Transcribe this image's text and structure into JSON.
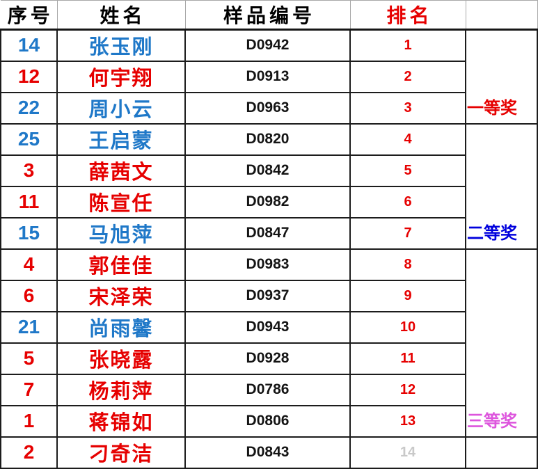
{
  "header": {
    "serial": "序号",
    "name": "姓名",
    "sample": "样品编号",
    "rank": "排名",
    "prize": "",
    "text_color": "#000000",
    "rank_color": "#e60000"
  },
  "colors": {
    "blue": "#1f78c8",
    "red": "#e60000",
    "black": "#141414",
    "faded_rank": "#c9c9c9",
    "prize_first": "#e60000",
    "prize_second": "#0000dd",
    "prize_third": "#dd55dd",
    "border": "#1c1c1c"
  },
  "rows": [
    {
      "no": "14",
      "name": "张玉刚",
      "sample": "D0942",
      "rank": "1",
      "color": "#1f78c8",
      "rank_color": "#e60000"
    },
    {
      "no": "12",
      "name": "何宇翔",
      "sample": "D0913",
      "rank": "2",
      "color": "#e60000",
      "rank_color": "#e60000"
    },
    {
      "no": "22",
      "name": "周小云",
      "sample": "D0963",
      "rank": "3",
      "color": "#1f78c8",
      "rank_color": "#e60000"
    },
    {
      "no": "25",
      "name": "王启蒙",
      "sample": "D0820",
      "rank": "4",
      "color": "#1f78c8",
      "rank_color": "#e60000"
    },
    {
      "no": "3",
      "name": "薛茜文",
      "sample": "D0842",
      "rank": "5",
      "color": "#e60000",
      "rank_color": "#e60000"
    },
    {
      "no": "11",
      "name": "陈宣任",
      "sample": "D0982",
      "rank": "6",
      "color": "#e60000",
      "rank_color": "#e60000"
    },
    {
      "no": "15",
      "name": "马旭萍",
      "sample": "D0847",
      "rank": "7",
      "color": "#1f78c8",
      "rank_color": "#e60000"
    },
    {
      "no": "4",
      "name": "郭佳佳",
      "sample": "D0983",
      "rank": "8",
      "color": "#e60000",
      "rank_color": "#e60000"
    },
    {
      "no": "6",
      "name": "宋泽荣",
      "sample": "D0937",
      "rank": "9",
      "color": "#e60000",
      "rank_color": "#e60000"
    },
    {
      "no": "21",
      "name": "尚雨馨",
      "sample": "D0943",
      "rank": "10",
      "color": "#1f78c8",
      "rank_color": "#e60000"
    },
    {
      "no": "5",
      "name": "张晓露",
      "sample": "D0928",
      "rank": "11",
      "color": "#e60000",
      "rank_color": "#e60000"
    },
    {
      "no": "7",
      "name": "杨莉萍",
      "sample": "D0786",
      "rank": "12",
      "color": "#e60000",
      "rank_color": "#e60000"
    },
    {
      "no": "1",
      "name": "蒋锦如",
      "sample": "D0806",
      "rank": "13",
      "color": "#e60000",
      "rank_color": "#e60000"
    },
    {
      "no": "2",
      "name": "刁奇洁",
      "sample": "D0843",
      "rank": "14",
      "color": "#e60000",
      "rank_color": "#c9c9c9"
    }
  ],
  "prizes": [
    {
      "label": "一等奖",
      "color": "#e60000",
      "span": 3
    },
    {
      "label": "二等奖",
      "color": "#0000dd",
      "span": 4
    },
    {
      "label": "三等奖",
      "color": "#dd55dd",
      "span": 6
    },
    {
      "label": "",
      "color": "#000000",
      "span": 1
    }
  ]
}
